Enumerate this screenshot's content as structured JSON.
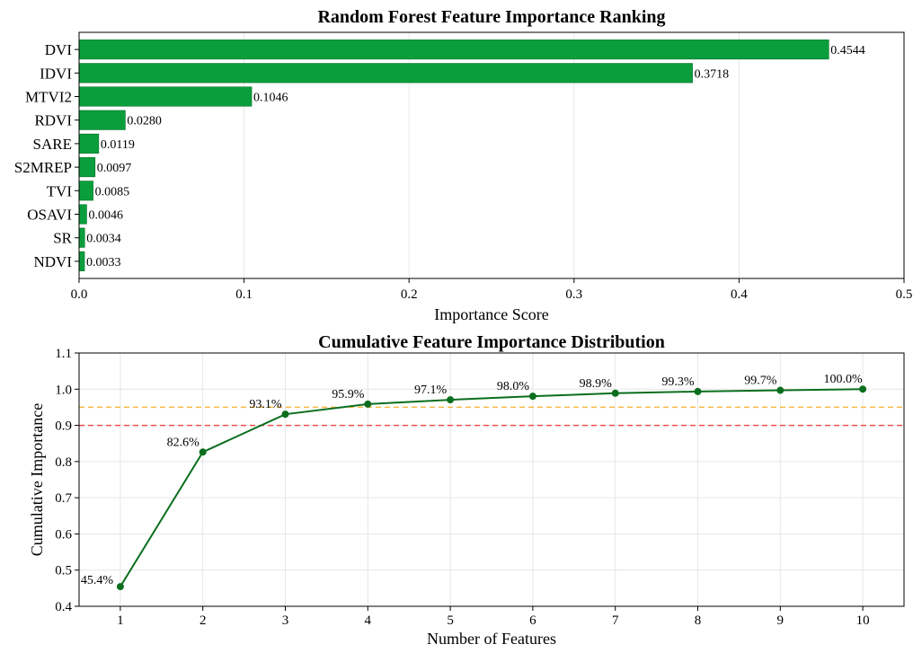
{
  "chart_data": [
    {
      "type": "bar",
      "orientation": "horizontal",
      "title": "Random Forest Feature Importance Ranking",
      "xlabel": "Importance Score",
      "ylabel": "",
      "categories": [
        "DVI",
        "IDVI",
        "MTVI2",
        "RDVI",
        "SARE",
        "S2MREP",
        "TVI",
        "OSAVI",
        "SR",
        "NDVI"
      ],
      "values": [
        0.4544,
        0.3718,
        0.1046,
        0.028,
        0.0119,
        0.0097,
        0.0085,
        0.0046,
        0.0034,
        0.0033
      ],
      "value_labels": [
        "0.4544",
        "0.3718",
        "0.1046",
        "0.0280",
        "0.0119",
        "0.0097",
        "0.0085",
        "0.0046",
        "0.0034",
        "0.0033"
      ],
      "xlim": [
        0,
        0.5
      ],
      "xticks": [
        0.0,
        0.1,
        0.2,
        0.3,
        0.4,
        0.5
      ],
      "xtick_labels": [
        "0.0",
        "0.1",
        "0.2",
        "0.3",
        "0.4",
        "0.5"
      ],
      "bar_color": "#0a9e3c",
      "grid": true
    },
    {
      "type": "line",
      "title": "Cumulative Feature Importance Distribution",
      "xlabel": "Number of Features",
      "ylabel": "Cumulative Importance",
      "x": [
        1,
        2,
        3,
        4,
        5,
        6,
        7,
        8,
        9,
        10
      ],
      "y": [
        0.4544,
        0.8262,
        0.9308,
        0.9588,
        0.9707,
        0.9804,
        0.9889,
        0.9935,
        0.9969,
        1.0002
      ],
      "point_labels": [
        "45.4%",
        "82.6%",
        "93.1%",
        "95.9%",
        "97.1%",
        "98.0%",
        "98.9%",
        "99.3%",
        "99.7%",
        "100.0%"
      ],
      "xlim": [
        0.5,
        10.5
      ],
      "ylim": [
        0.4,
        1.1
      ],
      "xticks": [
        1,
        2,
        3,
        4,
        5,
        6,
        7,
        8,
        9,
        10
      ],
      "xtick_labels": [
        "1",
        "2",
        "3",
        "4",
        "5",
        "6",
        "7",
        "8",
        "9",
        "10"
      ],
      "yticks": [
        0.4,
        0.5,
        0.6,
        0.7,
        0.8,
        0.9,
        1.0,
        1.1
      ],
      "ytick_labels": [
        "0.4",
        "0.5",
        "0.6",
        "0.7",
        "0.8",
        "0.9",
        "1.0",
        "1.1"
      ],
      "reference_lines": [
        {
          "y": 0.95,
          "color": "#f5b942",
          "style": "dashed"
        },
        {
          "y": 0.9,
          "color": "#f05050",
          "style": "dashed"
        }
      ],
      "line_color": "#0b6e1e",
      "grid": true
    }
  ]
}
